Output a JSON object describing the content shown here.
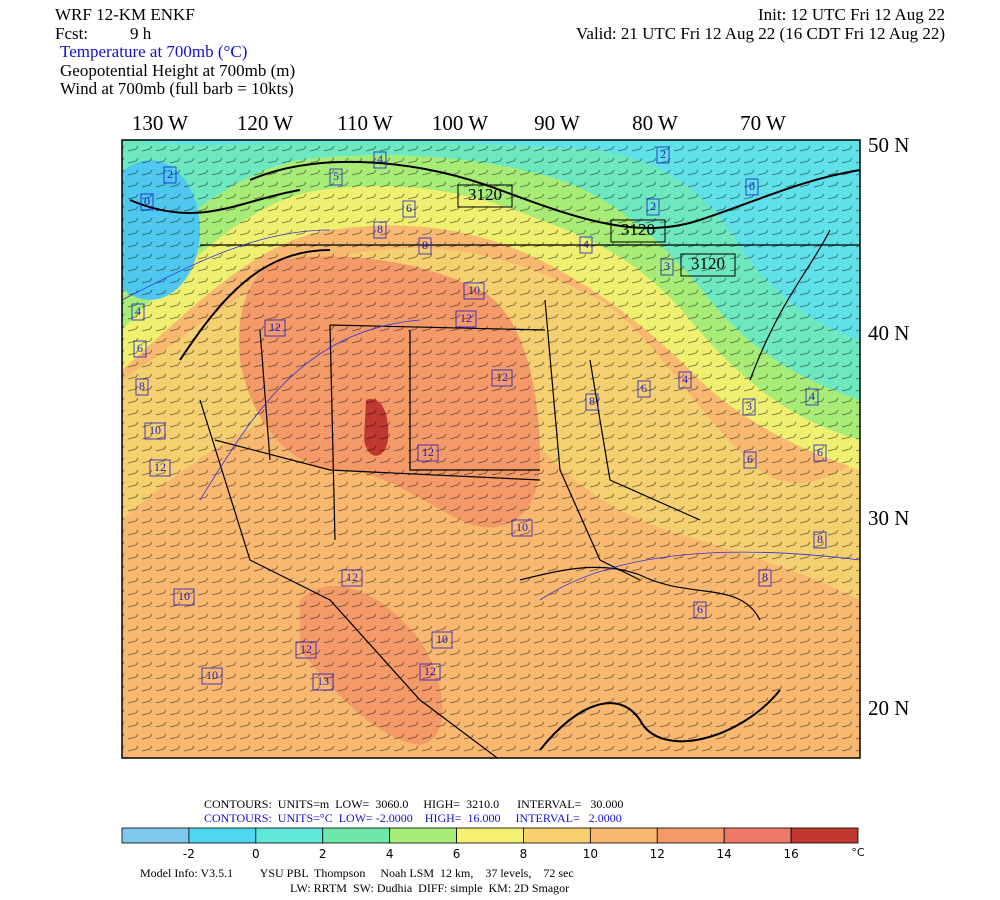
{
  "header": {
    "model": "WRF 12-KM ENKF",
    "init": "Init: 12 UTC Fri 12 Aug 22",
    "fcst_label": "Fcst:",
    "fcst_value": "9 h",
    "valid": "Valid: 21 UTC Fri 12 Aug 22 (16 CDT Fri 12 Aug 22)",
    "fields": [
      "Temperature at 700mb (°C)",
      "Geopotential Height at 700mb (m)",
      "Wind at 700mb (full barb = 10kts)"
    ]
  },
  "map": {
    "longitude_labels": [
      "130 W",
      "120 W",
      "110 W",
      "100 W",
      "90 W",
      "80 W",
      "70 W"
    ],
    "latitude_labels": [
      "50 N",
      "40 N",
      "30 N",
      "20 N"
    ],
    "height_labels": [
      "3120",
      "3120",
      "3120"
    ],
    "temperature_labels": [
      "0",
      "2",
      "4",
      "5",
      "6",
      "8",
      "8",
      "2",
      "0",
      "2",
      "3",
      "4",
      "4",
      "6",
      "8",
      "10",
      "12",
      "12",
      "10",
      "12",
      "12",
      "12",
      "10",
      "12",
      "10",
      "12",
      "13",
      "10",
      "10",
      "12",
      "6",
      "4",
      "3",
      "4",
      "6",
      "6",
      "8",
      "6",
      "8",
      "8"
    ]
  },
  "footer": {
    "height_contours": "CONTOURS:  UNITS=m  LOW=  3060.0     HIGH=  3210.0      INTERVAL=   30.000",
    "temperature_contours": "CONTOURS:  UNITS=°C  LOW= -2.0000    HIGH=  16.000     INTERVAL=   2.0000",
    "model_info": "Model Info: V3.5.1         YSU PBL  Thompson     Noah LSM  12 km,    37 levels,    72 sec",
    "physics": "LW: RRTM  SW: Dudhia  DIFF: simple  KM: 2D Smagor"
  },
  "colorbar": {
    "labels": [
      "-2",
      "0",
      "2",
      "4",
      "6",
      "8",
      "10",
      "12",
      "14",
      "16"
    ],
    "unit": "°C",
    "colors": [
      "#7ec8ee",
      "#4fd6f0",
      "#60e8d8",
      "#6ee8a8",
      "#a8ec78",
      "#f4f070",
      "#f8d070",
      "#f8b870",
      "#f49a68",
      "#f07868",
      "#c03830"
    ]
  }
}
